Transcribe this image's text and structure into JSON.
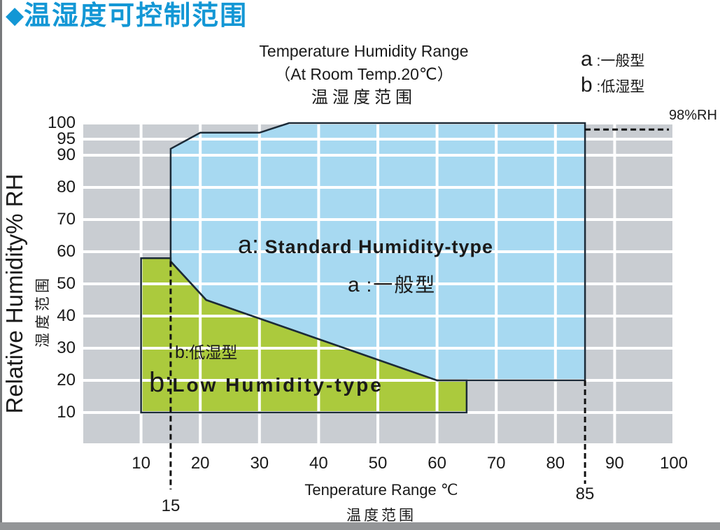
{
  "page": {
    "header_title": "温湿度可控制范围",
    "colors": {
      "accent": "#1397d5",
      "left_edge": "#77797b",
      "bottom_bar": "#939597"
    }
  },
  "chart_data": {
    "type": "area",
    "title_lines": [
      "Temperature Humidity Range",
      "（At Room Temp.20℃）",
      "温湿度范围"
    ],
    "legend": [
      {
        "key": "a",
        "rest": " :一般型"
      },
      {
        "key": "b",
        "rest": " :低湿型"
      }
    ],
    "xlabel": "Tenperature Range ℃",
    "xlabel_cn": "温度范围",
    "ylabel": "Relative Humidity% RH",
    "ylabel_cn": "湿度范围",
    "xlim": [
      0,
      100
    ],
    "ylim": [
      0,
      100
    ],
    "grid": true,
    "x_ticks": [
      10,
      20,
      30,
      40,
      50,
      60,
      70,
      80,
      90,
      100
    ],
    "y_ticks": [
      100,
      95,
      90,
      80,
      70,
      60,
      50,
      40,
      30,
      20,
      10
    ],
    "x_gridlines": [
      0,
      10,
      20,
      30,
      40,
      50,
      60,
      70,
      80,
      90,
      100
    ],
    "y_gridlines": [
      100,
      95,
      90,
      80,
      70,
      60,
      50,
      40,
      30,
      20,
      10,
      0
    ],
    "colors": {
      "grid_cell": "#c9cdd2",
      "gridline": "#ffffff",
      "outline": "#1c2b38",
      "guide": "#111111"
    },
    "regions": [
      {
        "id": "a",
        "name_en": "Standard Humidity-type",
        "name_cn": "一般型",
        "color": "#a7d9f1",
        "points": [
          [
            15,
            92
          ],
          [
            20,
            97
          ],
          [
            30,
            97
          ],
          [
            35,
            100
          ],
          [
            85,
            100
          ],
          [
            85,
            20
          ],
          [
            60,
            20
          ],
          [
            21,
            45
          ],
          [
            15,
            57
          ]
        ]
      },
      {
        "id": "b",
        "name_en": "Low Humidity-type",
        "name_cn": "低湿型",
        "color": "#abca3d",
        "points": [
          [
            10,
            58
          ],
          [
            15,
            58
          ],
          [
            15,
            57
          ],
          [
            21,
            45
          ],
          [
            60,
            20
          ],
          [
            65,
            20
          ],
          [
            65,
            10
          ],
          [
            10,
            10
          ]
        ]
      }
    ],
    "region_labels": {
      "a_en_prefix": "a:",
      "a_en_text": " Standard Humidity-type",
      "a_cn_prefix": "a",
      "a_cn_text": " :一般型",
      "b_cn_prefix": "b",
      "b_cn_text": ":低湿型",
      "b_en_prefix": "b:",
      "b_en_text": "Low Humidity-type"
    },
    "guides": [
      {
        "axis": "x",
        "value": 15,
        "from_rh": 57,
        "label": "15"
      },
      {
        "axis": "x",
        "value": 85,
        "from_rh": 20,
        "label": "85"
      },
      {
        "axis": "y",
        "value": 98,
        "from_t": 85,
        "label": "98%RH"
      }
    ]
  }
}
